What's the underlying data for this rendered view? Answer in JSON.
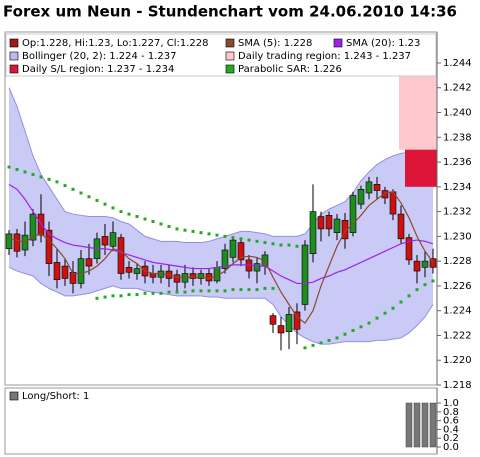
{
  "chart_data": {
    "type": "candlestick",
    "title": "Forex um Neun - Stundenchart vom 24.06.2010 14:36",
    "ylim": [
      1.218,
      1.2465
    ],
    "yticks": [
      1.218,
      {
        "value": 1.22,
        "label": "1.220"
      },
      1.222,
      1.224,
      1.226,
      1.228,
      {
        "value": 1.23,
        "label": "1.230"
      },
      1.232,
      1.234,
      1.236,
      1.238,
      {
        "value": 1.24,
        "label": "1.240"
      },
      1.242,
      1.244
    ],
    "candles": {
      "name": "Op:1.228, Hi:1.23, Lo:1.227, Cl:1.228",
      "color": "#a01818",
      "up_color": "#1e8c1e",
      "down_color": "#cc1111",
      "open": [
        1.229,
        1.2302,
        1.2289,
        1.2297,
        1.2318,
        1.2305,
        1.2279,
        1.2276,
        1.2271,
        1.2262,
        1.2282,
        1.2282,
        1.23,
        1.2292,
        1.2299,
        1.2275,
        1.227,
        1.2276,
        1.227,
        1.2267,
        1.2272,
        1.2269,
        1.2263,
        1.227,
        1.2266,
        1.227,
        1.2264,
        1.2274,
        1.2283,
        1.2295,
        1.2281,
        1.2272,
        1.2276,
        1.2236,
        1.2228,
        1.2223,
        1.2239,
        1.2245,
        1.2286,
        1.2316,
        1.2317,
        1.2303,
        1.2313,
        1.2303,
        1.2326,
        1.2335,
        1.2342,
        1.2337,
        1.2336,
        1.2318,
        1.2299,
        1.228,
        1.2275,
        1.2282
      ],
      "high": [
        1.2305,
        1.2306,
        1.2312,
        1.2322,
        1.2334,
        1.2312,
        1.229,
        1.2282,
        1.228,
        1.2289,
        1.2294,
        1.2303,
        1.231,
        1.2312,
        1.2302,
        1.228,
        1.2278,
        1.228,
        1.2277,
        1.2277,
        1.2277,
        1.2273,
        1.2277,
        1.2275,
        1.2273,
        1.2274,
        1.228,
        1.2294,
        1.23,
        1.2298,
        1.2285,
        1.2283,
        1.2288,
        1.2238,
        1.2235,
        1.2243,
        1.2246,
        1.2297,
        1.2342,
        1.232,
        1.232,
        1.2318,
        1.2319,
        1.2336,
        1.2341,
        1.2348,
        1.2348,
        1.234,
        1.2338,
        1.2325,
        1.2302,
        1.2285,
        1.2288,
        1.229
      ],
      "low": [
        1.2285,
        1.2283,
        1.2284,
        1.2292,
        1.2295,
        1.2268,
        1.2258,
        1.226,
        1.2254,
        1.2258,
        1.2269,
        1.2278,
        1.2285,
        1.2288,
        1.2265,
        1.2266,
        1.2265,
        1.2262,
        1.2262,
        1.2262,
        1.2259,
        1.2255,
        1.2258,
        1.226,
        1.2261,
        1.226,
        1.2262,
        1.227,
        1.2279,
        1.2276,
        1.2266,
        1.2262,
        1.2269,
        1.2222,
        1.2208,
        1.2209,
        1.2213,
        1.224,
        1.2279,
        1.2296,
        1.23,
        1.2297,
        1.229,
        1.23,
        1.2322,
        1.233,
        1.233,
        1.2326,
        1.2313,
        1.2294,
        1.2277,
        1.2262,
        1.2267,
        1.227
      ],
      "close": [
        1.2302,
        1.2288,
        1.2301,
        1.2318,
        1.2301,
        1.2278,
        1.2265,
        1.2266,
        1.2262,
        1.2282,
        1.2276,
        1.2298,
        1.2293,
        1.2303,
        1.227,
        1.2271,
        1.2274,
        1.2268,
        1.2267,
        1.2272,
        1.2266,
        1.2263,
        1.227,
        1.2266,
        1.227,
        1.2264,
        1.2275,
        1.2289,
        1.2297,
        1.2281,
        1.2272,
        1.2278,
        1.2285,
        1.2229,
        1.2222,
        1.2237,
        1.2225,
        1.2293,
        1.232,
        1.2306,
        1.2306,
        1.2314,
        1.2298,
        1.2333,
        1.2338,
        1.2344,
        1.2337,
        1.2331,
        1.2318,
        1.2298,
        1.2281,
        1.2272,
        1.228,
        1.2275
      ]
    },
    "sma5": {
      "name": "SMA (5): 1.228",
      "color": "#8b4a2b",
      "values": [
        1.2298,
        1.2297,
        1.2295,
        1.23,
        1.2302,
        1.2297,
        1.229,
        1.2282,
        1.227,
        1.227,
        1.2272,
        1.2276,
        1.2282,
        1.229,
        1.2288,
        1.2282,
        1.2278,
        1.2272,
        1.227,
        1.227,
        1.2269,
        1.2267,
        1.2267,
        1.2267,
        1.2267,
        1.2266,
        1.2268,
        1.2272,
        1.2278,
        1.2283,
        1.2284,
        1.2283,
        1.228,
        1.2267,
        1.2255,
        1.2245,
        1.2235,
        1.223,
        1.224,
        1.226,
        1.2276,
        1.2292,
        1.2304,
        1.231,
        1.2317,
        1.2325,
        1.233,
        1.2335,
        1.2336,
        1.2327,
        1.2315,
        1.23,
        1.2288,
        1.2279
      ]
    },
    "sma20": {
      "name": "SMA (20): 1.23",
      "color": "#a020f0",
      "values": [
        1.2342,
        1.2338,
        1.233,
        1.232,
        1.231,
        1.2302,
        1.2298,
        1.2295,
        1.2293,
        1.2292,
        1.2291,
        1.229,
        1.229,
        1.2289,
        1.2287,
        1.2285,
        1.2283,
        1.2281,
        1.2279,
        1.2278,
        1.2277,
        1.2276,
        1.2275,
        1.2274,
        1.2274,
        1.2274,
        1.2275,
        1.2276,
        1.2277,
        1.2277,
        1.2277,
        1.2276,
        1.2276,
        1.2272,
        1.2268,
        1.2265,
        1.2262,
        1.2262,
        1.2263,
        1.2266,
        1.2268,
        1.2271,
        1.2273,
        1.2276,
        1.2279,
        1.2282,
        1.2285,
        1.2288,
        1.2291,
        1.2294,
        1.2296,
        1.2297,
        1.2296,
        1.2294
      ]
    },
    "bollinger": {
      "name": "Bollinger (20, 2): 1.224 - 1.237",
      "color": "#b8b8f4",
      "upper": [
        1.242,
        1.2405,
        1.2385,
        1.2365,
        1.235,
        1.234,
        1.233,
        1.232,
        1.2318,
        1.2317,
        1.2316,
        1.2316,
        1.2316,
        1.2315,
        1.2312,
        1.231,
        1.2305,
        1.23,
        1.2298,
        1.2296,
        1.2296,
        1.2296,
        1.2295,
        1.2295,
        1.2295,
        1.2296,
        1.2298,
        1.23,
        1.2302,
        1.2304,
        1.2304,
        1.2303,
        1.2302,
        1.23,
        1.23,
        1.23,
        1.23,
        1.2302,
        1.231,
        1.2318,
        1.2322,
        1.2325,
        1.2328,
        1.2335,
        1.2345,
        1.2352,
        1.2358,
        1.2362,
        1.2365,
        1.2367,
        1.2368,
        1.2368,
        1.2368,
        1.2368
      ],
      "lower": [
        1.2275,
        1.2272,
        1.227,
        1.2268,
        1.2262,
        1.2258,
        1.2255,
        1.2252,
        1.2252,
        1.2253,
        1.2254,
        1.2256,
        1.2258,
        1.226,
        1.2258,
        1.2258,
        1.2258,
        1.2256,
        1.2255,
        1.2254,
        1.2253,
        1.2252,
        1.2252,
        1.2252,
        1.2252,
        1.2251,
        1.2251,
        1.225,
        1.225,
        1.225,
        1.225,
        1.225,
        1.225,
        1.2245,
        1.2235,
        1.2228,
        1.2222,
        1.2218,
        1.2215,
        1.2213,
        1.2213,
        1.2214,
        1.2215,
        1.2215,
        1.2215,
        1.2215,
        1.2216,
        1.2216,
        1.2217,
        1.2218,
        1.2222,
        1.2228,
        1.2235,
        1.2245
      ]
    },
    "trading_region": {
      "name": "Daily trading region: 1.243 - 1.237",
      "color": "#ffc8cc",
      "range": [
        1.243,
        1.237
      ]
    },
    "sl_region": {
      "name": "Daily S/L region: 1.237 - 1.234",
      "color": "#dc1438",
      "range": [
        1.237,
        1.234
      ]
    },
    "sar": {
      "name": "Parabolic SAR: 1.226",
      "color": "#22aa22",
      "segments": [
        {
          "values": [
            1.2356,
            1.2354,
            1.2352,
            1.235,
            1.2348,
            1.2346,
            1.2344,
            1.2341,
            1.2338,
            1.2335,
            1.2332,
            1.2329,
            1.2326,
            1.2323,
            1.232,
            1.2318,
            1.2316,
            1.2314,
            1.2312,
            1.231,
            1.2308,
            1.2306,
            1.2305,
            1.2304,
            1.2303,
            1.2302,
            1.2301,
            1.23,
            1.2299,
            1.2298,
            1.2297,
            1.2296,
            1.2295,
            1.2294,
            1.2293,
            1.2293,
            1.2292,
            null,
            null,
            null,
            null,
            null,
            null,
            null,
            null,
            null,
            null,
            null,
            null,
            null,
            null,
            null,
            null,
            null
          ]
        },
        {
          "values": [
            null,
            null,
            null,
            null,
            null,
            null,
            null,
            null,
            null,
            null,
            null,
            1.225,
            1.2251,
            1.2252,
            1.2252,
            1.2253,
            1.2253,
            1.2254,
            1.2254,
            1.2254,
            1.2255,
            1.2255,
            1.2255,
            1.2256,
            1.2256,
            1.2256,
            1.2256,
            1.2256,
            1.2257,
            1.2257,
            1.2257,
            1.2257,
            1.2258,
            1.2258,
            null,
            null,
            null,
            null,
            null,
            null,
            null,
            null,
            null,
            null,
            null,
            null,
            null,
            null,
            null,
            null,
            null,
            null,
            null,
            null
          ]
        },
        {
          "values": [
            null,
            null,
            null,
            null,
            null,
            null,
            null,
            null,
            null,
            null,
            null,
            null,
            null,
            null,
            null,
            null,
            null,
            null,
            null,
            null,
            null,
            null,
            null,
            null,
            null,
            null,
            null,
            null,
            null,
            null,
            null,
            null,
            null,
            null,
            null,
            null,
            null,
            1.221,
            1.2212,
            1.2214,
            1.2216,
            1.2218,
            1.2221,
            1.2224,
            1.2227,
            1.223,
            1.2234,
            1.2238,
            1.2242,
            1.2247,
            1.2252,
            1.2257,
            1.2261,
            1.2264
          ]
        }
      ]
    },
    "long_short": {
      "title": "Long/Short: 1",
      "color": "#777777",
      "ylim": [
        0,
        1
      ],
      "yticks": [
        {
          "value": 0,
          "label": "0.0"
        },
        {
          "value": 0.2,
          "label": "0.2"
        },
        {
          "value": 0.4,
          "label": "0.4"
        },
        {
          "value": 0.6,
          "label": "0.6"
        },
        {
          "value": 0.8,
          "label": "0.8"
        },
        {
          "value": 1,
          "label": "1.0"
        }
      ],
      "values": [
        null,
        null,
        null,
        null,
        null,
        null,
        null,
        null,
        null,
        null,
        null,
        null,
        null,
        null,
        null,
        null,
        null,
        null,
        null,
        null,
        null,
        null,
        null,
        null,
        null,
        null,
        null,
        null,
        null,
        null,
        null,
        null,
        null,
        null,
        null,
        null,
        null,
        null,
        null,
        null,
        null,
        null,
        null,
        null,
        null,
        null,
        null,
        null,
        null,
        null,
        1,
        1,
        1,
        1
      ]
    }
  }
}
